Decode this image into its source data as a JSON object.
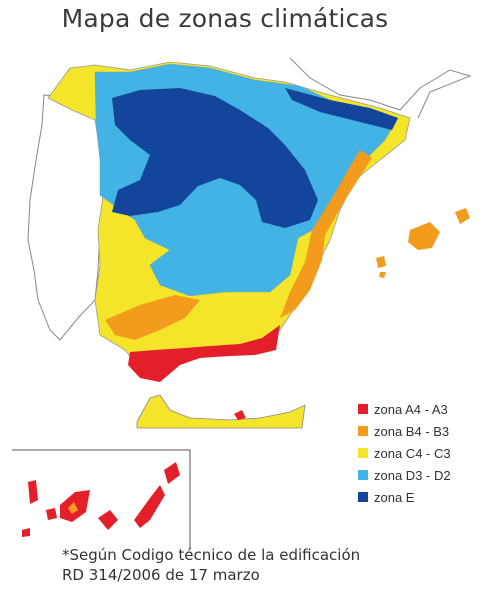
{
  "title": "Mapa de zonas climáticas",
  "colors": {
    "red": "#e3202a",
    "orange": "#f39b1c",
    "yellow": "#f5e52a",
    "lightblue": "#43b3e6",
    "darkblue": "#13469a"
  },
  "legend": [
    {
      "label": "zona A4 - A3",
      "color": "#e3202a"
    },
    {
      "label": "zona B4 - B3",
      "color": "#f39b1c"
    },
    {
      "label": "zona C4 - C3",
      "color": "#f5e52a"
    },
    {
      "label": "zona D3 - D2",
      "color": "#43b3e6"
    },
    {
      "label": "zona E",
      "color": "#13469a"
    }
  ],
  "note": {
    "line1": "*Según Codigo técnico de la edificación",
    "line2": "RD 314/2006 de 17 marzo"
  }
}
